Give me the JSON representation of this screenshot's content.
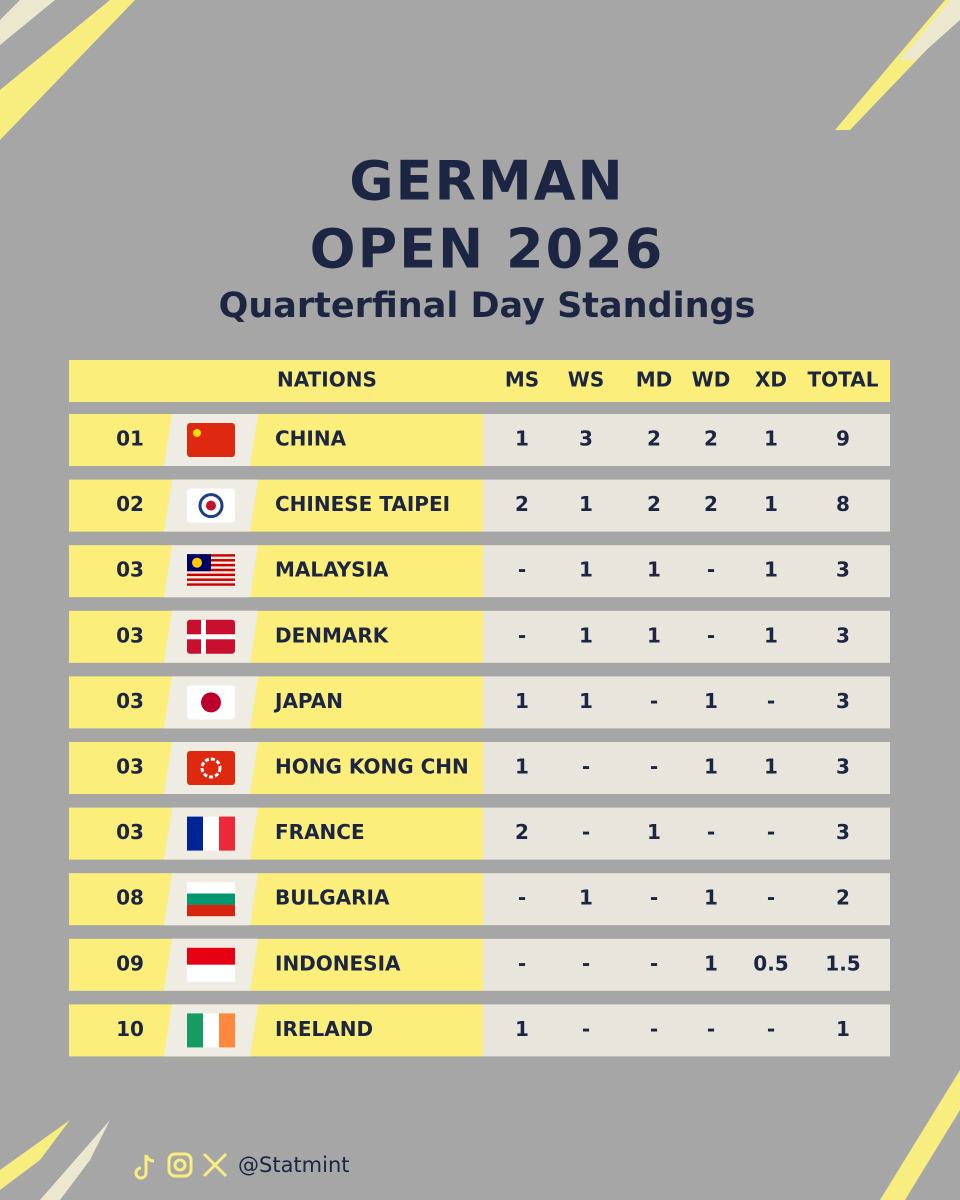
{
  "title": {
    "line1": "GERMAN",
    "line2": "OPEN 2026",
    "subtitle": "Quarterfinal Day Standings"
  },
  "table": {
    "header": [
      "NATIONS",
      "MS",
      "WS",
      "MD",
      "WD",
      "XD",
      "TOTAL"
    ],
    "rows": [
      [
        "01",
        "CHINA",
        "1",
        "3",
        "2",
        "2",
        "1",
        "9"
      ],
      [
        "02",
        "CHINESE TAIPEI",
        "2",
        "1",
        "2",
        "2",
        "1",
        "8"
      ],
      [
        "03",
        "MALAYSIA",
        "-",
        "1",
        "1",
        "-",
        "1",
        "3"
      ],
      [
        "03",
        "DENMARK",
        "-",
        "1",
        "1",
        "-",
        "1",
        "3"
      ],
      [
        "03",
        "JAPAN",
        "1",
        "1",
        "-",
        "1",
        "-",
        "3"
      ],
      [
        "03",
        "HONG KONG CHN",
        "1",
        "-",
        "-",
        "1",
        "1",
        "3"
      ],
      [
        "03",
        "FRANCE",
        "2",
        "-",
        "1",
        "-",
        "-",
        "3"
      ],
      [
        "08",
        "BULGARIA",
        "-",
        "1",
        "-",
        "1",
        "-",
        "2"
      ],
      [
        "09",
        "INDONESIA",
        "-",
        "-",
        "-",
        "1",
        "0.5",
        "1.5"
      ],
      [
        "10",
        "IRELAND",
        "1",
        "-",
        "-",
        "-",
        "-",
        "1"
      ]
    ]
  },
  "footer": {
    "handle": "@Statmint"
  }
}
